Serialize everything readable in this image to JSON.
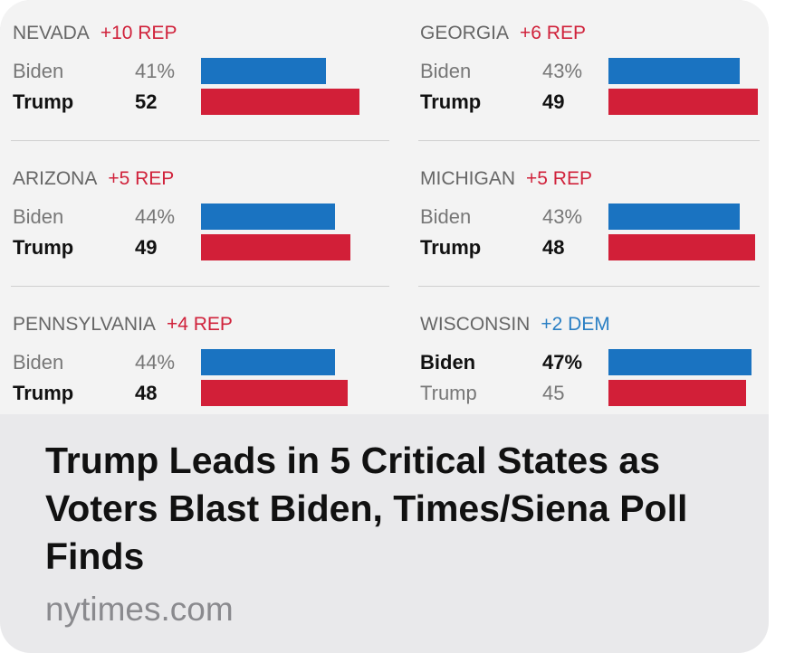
{
  "chart_data": {
    "type": "bar",
    "title": "",
    "states": [
      {
        "name": "NEVADA",
        "margin": "+10 REP",
        "party": "rep",
        "rows": [
          {
            "candidate": "Biden",
            "value": 41,
            "label": "41%",
            "lead": false
          },
          {
            "candidate": "Trump",
            "value": 52,
            "label": "52",
            "lead": true
          }
        ]
      },
      {
        "name": "GEORGIA",
        "margin": "+6 REP",
        "party": "rep",
        "rows": [
          {
            "candidate": "Biden",
            "value": 43,
            "label": "43%",
            "lead": false
          },
          {
            "candidate": "Trump",
            "value": 49,
            "label": "49",
            "lead": true
          }
        ]
      },
      {
        "name": "ARIZONA",
        "margin": "+5 REP",
        "party": "rep",
        "rows": [
          {
            "candidate": "Biden",
            "value": 44,
            "label": "44%",
            "lead": false
          },
          {
            "candidate": "Trump",
            "value": 49,
            "label": "49",
            "lead": true
          }
        ]
      },
      {
        "name": "MICHIGAN",
        "margin": "+5 REP",
        "party": "rep",
        "rows": [
          {
            "candidate": "Biden",
            "value": 43,
            "label": "43%",
            "lead": false
          },
          {
            "candidate": "Trump",
            "value": 48,
            "label": "48",
            "lead": true
          }
        ]
      },
      {
        "name": "PENNSYLVANIA",
        "margin": "+4 REP",
        "party": "rep",
        "rows": [
          {
            "candidate": "Biden",
            "value": 44,
            "label": "44%",
            "lead": false
          },
          {
            "candidate": "Trump",
            "value": 48,
            "label": "48",
            "lead": true
          }
        ]
      },
      {
        "name": "WISCONSIN",
        "margin": "+2 DEM",
        "party": "dem",
        "rows": [
          {
            "candidate": "Biden",
            "value": 47,
            "label": "47%",
            "lead": true
          },
          {
            "candidate": "Trump",
            "value": 45,
            "label": "45",
            "lead": false
          }
        ]
      }
    ],
    "colors": {
      "biden": "#1a73c1",
      "trump": "#d21f38",
      "rep_text": "#d0223b",
      "dem_text": "#2a7fc4"
    }
  },
  "link_preview": {
    "headline": "Trump Leads in 5 Critical States as Voters Blast Biden, Times/Siena Poll Finds",
    "source": "nytimes.com"
  }
}
